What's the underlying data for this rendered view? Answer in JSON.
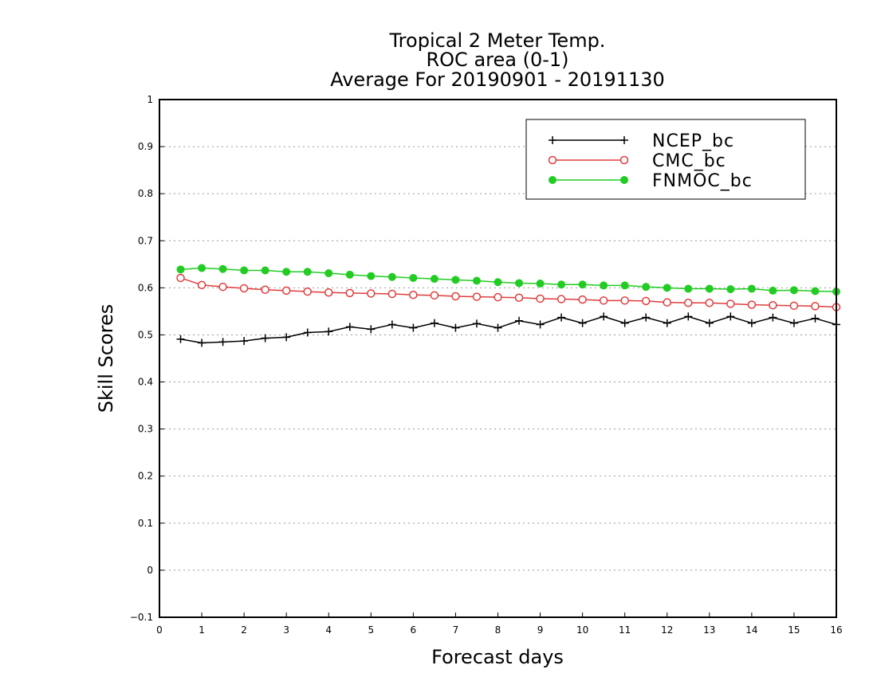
{
  "chart_data": {
    "type": "line",
    "title_lines": [
      "Tropical 2 Meter Temp.",
      "ROC area (0-1)",
      "Average For 20190901 - 20191130"
    ],
    "xlabel": "Forecast days",
    "ylabel": "Skill Scores",
    "xlim": [
      0,
      16
    ],
    "ylim": [
      -0.1,
      1
    ],
    "x_ticks": [
      "0",
      "1",
      "2",
      "3",
      "4",
      "5",
      "6",
      "7",
      "8",
      "9",
      "10",
      "11",
      "12",
      "13",
      "14",
      "15",
      "16"
    ],
    "y_ticks": [
      "-0.1",
      "0",
      "0.1",
      "0.2",
      "0.3",
      "0.4",
      "0.5",
      "0.6",
      "0.7",
      "0.8",
      "0.9",
      "1"
    ],
    "grid": "horizontal dotted",
    "legend_position": "top-right",
    "x": [
      0.5,
      1,
      1.5,
      2,
      2.5,
      3,
      3.5,
      4,
      4.5,
      5,
      5.5,
      6,
      6.5,
      7,
      7.5,
      8,
      8.5,
      9,
      9.5,
      10,
      10.5,
      11,
      11.5,
      12,
      12.5,
      13,
      13.5,
      14,
      14.5,
      15,
      15.5,
      16
    ],
    "series": [
      {
        "name": "NCEP_bc",
        "color": "#000000",
        "marker": "plus",
        "values": [
          0.491,
          0.483,
          0.485,
          0.487,
          0.493,
          0.495,
          0.505,
          0.507,
          0.517,
          0.512,
          0.522,
          0.515,
          0.525,
          0.515,
          0.524,
          0.515,
          0.53,
          0.522,
          0.537,
          0.525,
          0.539,
          0.525,
          0.537,
          0.525,
          0.539,
          0.525,
          0.539,
          0.525,
          0.537,
          0.525,
          0.535,
          0.522
        ]
      },
      {
        "name": "CMC_bc",
        "color": "#e03c3c",
        "marker": "open-circle",
        "values": [
          0.621,
          0.606,
          0.602,
          0.599,
          0.596,
          0.594,
          0.592,
          0.59,
          0.589,
          0.588,
          0.587,
          0.585,
          0.584,
          0.582,
          0.581,
          0.58,
          0.579,
          0.577,
          0.576,
          0.575,
          0.573,
          0.573,
          0.572,
          0.569,
          0.568,
          0.568,
          0.566,
          0.564,
          0.563,
          0.562,
          0.561,
          0.559
        ]
      },
      {
        "name": "FNMOC_bc",
        "color": "#22cc22",
        "marker": "filled-circle",
        "values": [
          0.639,
          0.642,
          0.64,
          0.637,
          0.637,
          0.634,
          0.634,
          0.631,
          0.628,
          0.625,
          0.623,
          0.621,
          0.619,
          0.617,
          0.615,
          0.612,
          0.61,
          0.609,
          0.607,
          0.607,
          0.605,
          0.605,
          0.602,
          0.6,
          0.598,
          0.598,
          0.597,
          0.598,
          0.594,
          0.595,
          0.593,
          0.592
        ]
      }
    ]
  }
}
